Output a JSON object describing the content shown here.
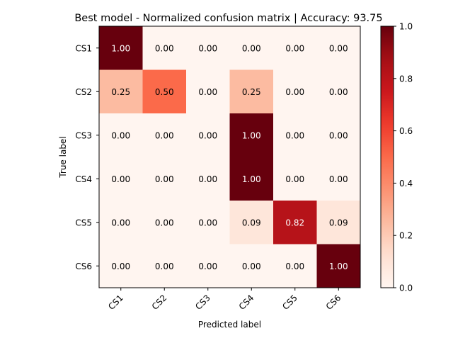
{
  "chart_data": {
    "type": "heatmap",
    "title": "Best model - Normalized confusion matrix | Accuracy: 93.75",
    "xlabel": "Predicted label",
    "ylabel": "True label",
    "x_categories": [
      "CS1",
      "CS2",
      "CS3",
      "CS4",
      "CS5",
      "CS6"
    ],
    "y_categories": [
      "CS1",
      "CS2",
      "CS3",
      "CS4",
      "CS5",
      "CS6"
    ],
    "values": [
      [
        1.0,
        0.0,
        0.0,
        0.0,
        0.0,
        0.0
      ],
      [
        0.25,
        0.5,
        0.0,
        0.25,
        0.0,
        0.0
      ],
      [
        0.0,
        0.0,
        0.0,
        1.0,
        0.0,
        0.0
      ],
      [
        0.0,
        0.0,
        0.0,
        1.0,
        0.0,
        0.0
      ],
      [
        0.0,
        0.0,
        0.0,
        0.09,
        0.82,
        0.09
      ],
      [
        0.0,
        0.0,
        0.0,
        0.0,
        0.0,
        1.0
      ]
    ],
    "value_format": "0.00",
    "colormap": "Reds",
    "color_range": [
      0.0,
      1.0
    ],
    "colorbar_ticks": [
      0.0,
      0.2,
      0.4,
      0.6,
      0.8,
      1.0
    ],
    "colorbar_tick_labels": [
      "0.0",
      "0.2",
      "0.4",
      "0.6",
      "0.8",
      "1.0"
    ],
    "colorbar_position": "right",
    "x_tick_rotation_deg": 45,
    "grid": false,
    "text_color_light": "#ffffff",
    "text_color_dark": "#000000"
  }
}
